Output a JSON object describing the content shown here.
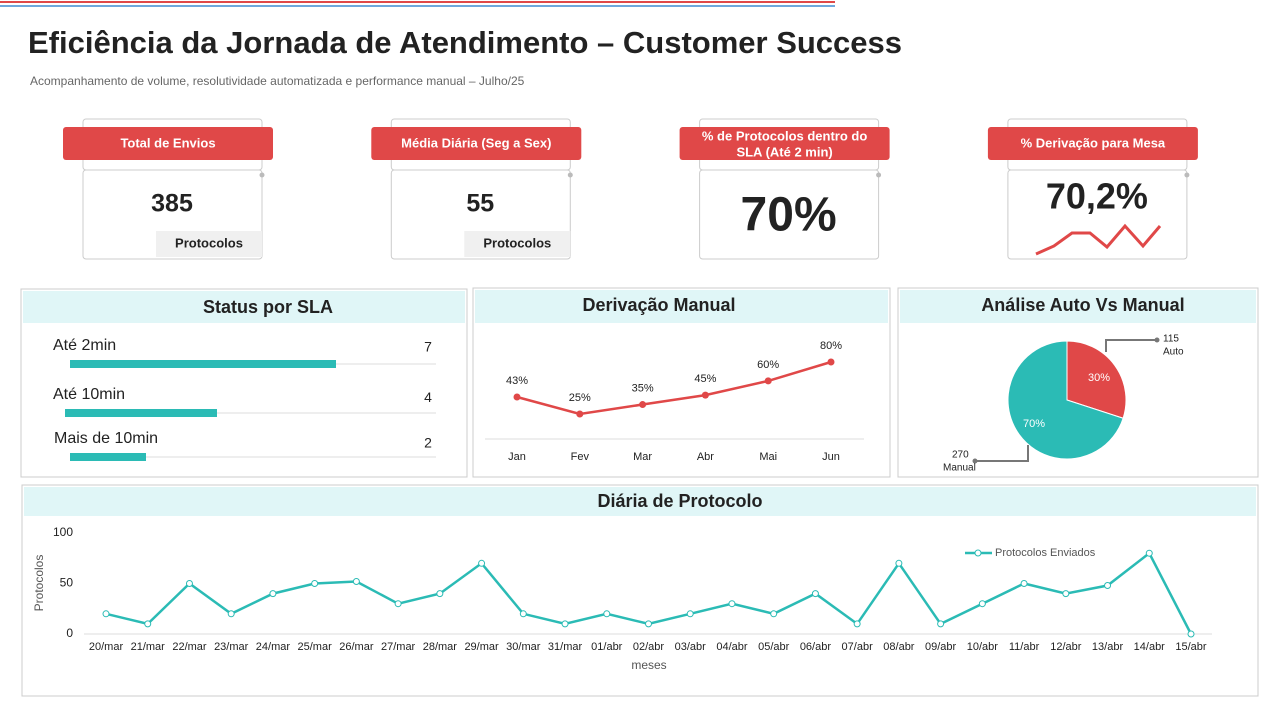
{
  "header": {
    "title": "Eficiência da Jornada de Atendimento – Customer Success",
    "subtitle": "Acompanhamento de volume, resolutividade automatizada e performance manual – Julho/25"
  },
  "kpis": [
    {
      "label": "Total de Envios",
      "value": "385",
      "unit": "Protocolos"
    },
    {
      "label": "Média Diária (Seg a Sex)",
      "value": "55",
      "unit": "Protocolos"
    },
    {
      "label": [
        "% de Protocolos dentro do",
        "SLA (Até 2 min)"
      ],
      "value": "70%"
    },
    {
      "label": "% Derivação para Mesa",
      "value": "70,2%"
    }
  ],
  "chart_data": [
    {
      "type": "hbar",
      "title": "Status por SLA",
      "categories": [
        "Até 2min",
        "Até 10min",
        "Mais de 10min"
      ],
      "values": [
        7,
        4,
        2
      ],
      "color": "#2bbbb5"
    },
    {
      "type": "line",
      "title": "Derivação Manual",
      "categories": [
        "Jan",
        "Fev",
        "Mar",
        "Abr",
        "Mai",
        "Jun"
      ],
      "values": [
        43,
        25,
        35,
        45,
        60,
        80
      ],
      "value_labels": [
        "43%",
        "25%",
        "35%",
        "45%",
        "60%",
        "80%"
      ],
      "color": "#e04848"
    },
    {
      "type": "pie",
      "title": "Análise Auto Vs Manual",
      "categories": [
        "Auto",
        "Manual"
      ],
      "values": [
        30,
        70
      ],
      "value_labels": [
        "30%",
        "70%"
      ],
      "counts": [
        115,
        270
      ],
      "colors": [
        "#e04848",
        "#2bbbb5"
      ]
    },
    {
      "type": "line",
      "title": "Diária de Protocolo",
      "x_label": "meses",
      "y_label": "Protocolos",
      "categories": [
        "20/mar",
        "21/mar",
        "22/mar",
        "23/mar",
        "24/mar",
        "25/mar",
        "26/mar",
        "27/mar",
        "28/mar",
        "29/mar",
        "30/mar",
        "31/mar",
        "01/abr",
        "02/abr",
        "03/abr",
        "04/abr",
        "05/abr",
        "06/abr",
        "07/abr",
        "08/abr",
        "09/abr",
        "10/abr",
        "11/abr",
        "12/abr",
        "13/abr",
        "14/abr",
        "15/abr"
      ],
      "series": [
        {
          "name": "Protocolos Enviados",
          "color": "#2bbbb5",
          "values": [
            20,
            10,
            50,
            20,
            40,
            50,
            52,
            30,
            40,
            70,
            20,
            10,
            20,
            10,
            20,
            30,
            20,
            40,
            10,
            70,
            10,
            30,
            50,
            40,
            48,
            80,
            0
          ]
        }
      ],
      "ylim": [
        0,
        100
      ],
      "yticks": [
        0,
        50,
        100
      ],
      "legend": "upper right"
    }
  ]
}
